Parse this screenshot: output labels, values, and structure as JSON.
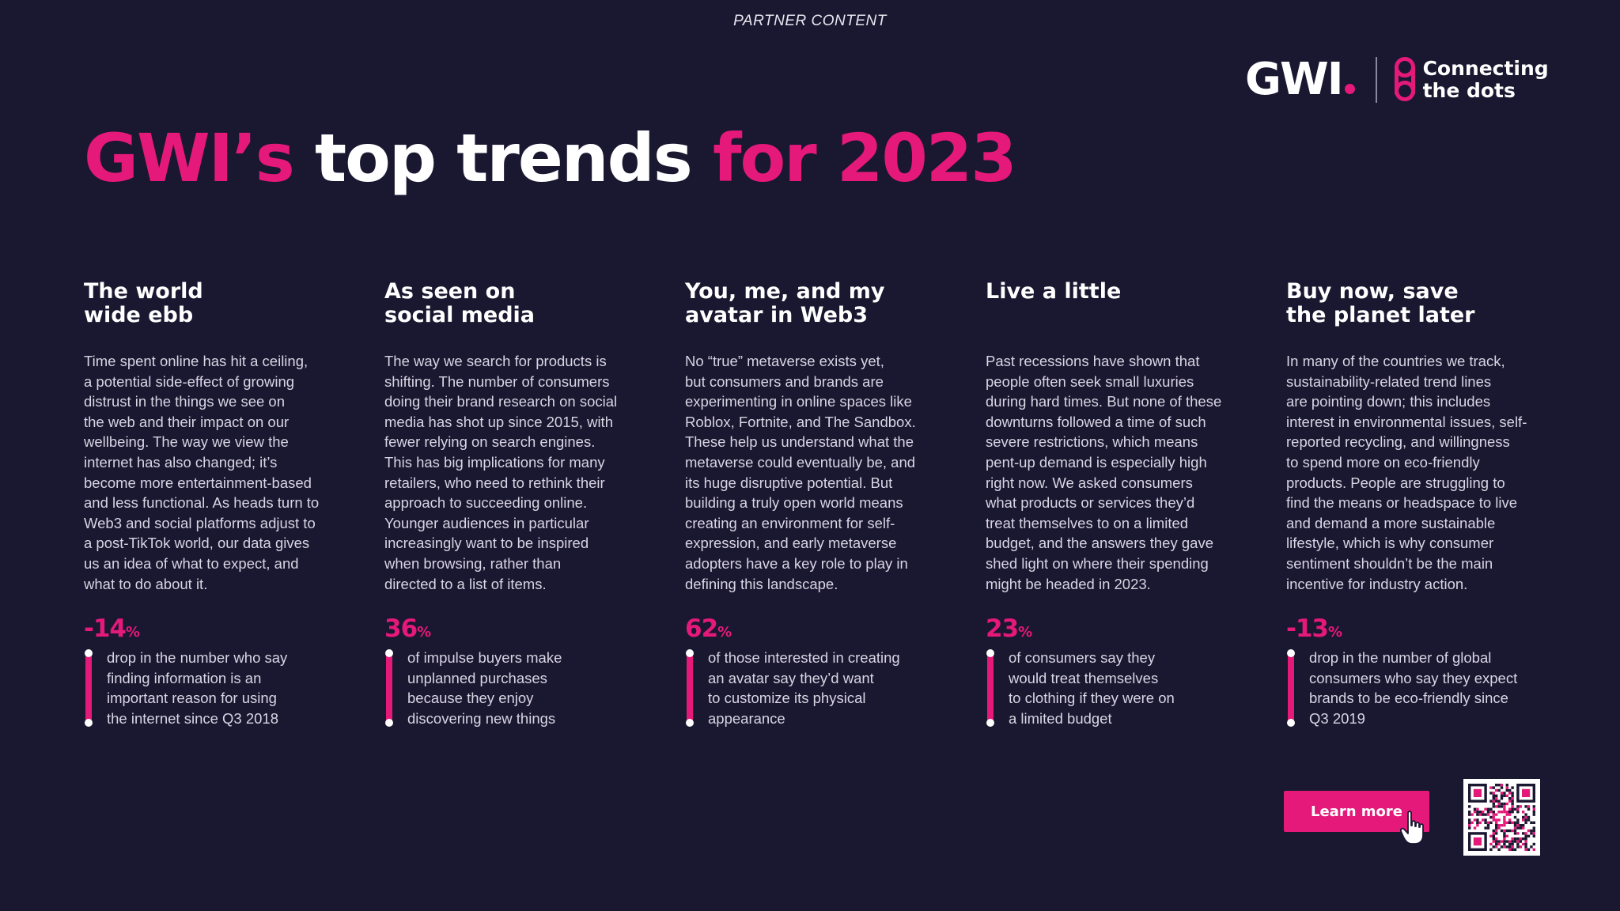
{
  "header": {
    "partner_label": "PARTNER CONTENT"
  },
  "brand": {
    "logo_text": "GWI",
    "tagline_line1": "Connecting",
    "tagline_line2": "the dots",
    "accent_color": "#e5197a",
    "background_color": "#1a1730"
  },
  "headline": {
    "part1": "GWI’s ",
    "part2": "top trends ",
    "part3": "for 2023"
  },
  "trends": [
    {
      "title": "The world\nwide ebb",
      "body": "Time spent online has hit a ceiling,\na potential side-effect of growing\ndistrust in the things we see on\nthe web and their impact on our\nwellbeing. The way we view the\ninternet has also changed; it’s\nbecome more entertainment-based\nand less functional. As heads turn to\nWeb3 and social platforms adjust to\na post-TikTok world, our data gives\nus an idea of what to expect, and\nwhat to do about it.",
      "stat_value": "-14",
      "stat_unit": "%",
      "stat_text": "drop in the number who say\nfinding information is an\nimportant reason for using\nthe internet since Q3 2018"
    },
    {
      "title": "As seen on\nsocial media",
      "body": "The way we search for products is\nshifting. The number of consumers\ndoing their brand research on social\nmedia has shot up since 2015, with\nfewer relying on search engines.\nThis has big implications for many\nretailers, who need to rethink their\napproach to succeeding online.\nYounger audiences in particular\nincreasingly want to be inspired\nwhen browsing, rather than\ndirected to a list of items.",
      "stat_value": "36",
      "stat_unit": "%",
      "stat_text": "of impulse buyers make\nunplanned purchases\nbecause they enjoy\ndiscovering new things"
    },
    {
      "title": "You, me, and my\navatar in Web3",
      "body": "No “true” metaverse exists yet,\nbut consumers and brands are\nexperimenting in online spaces like\nRoblox, Fortnite, and The Sandbox.\nThese help us understand what the\nmetaverse could eventually be, and\nits huge disruptive potential. But\nbuilding a truly open world means\ncreating an environment for self-\nexpression, and early metaverse\nadopters have a key role to play in\ndefining this landscape.",
      "stat_value": "62",
      "stat_unit": "%",
      "stat_text": "of those interested in creating\nan avatar say they’d want\nto customize its physical\nappearance"
    },
    {
      "title": "Live a little",
      "body": "Past recessions have shown that\npeople often seek small luxuries\nduring hard times. But none of these\ndownturns followed a time of such\nsevere restrictions, which means\npent-up demand is especially high\nright now. We asked consumers\nwhat products or services they’d\ntreat themselves to on a limited\nbudget, and the answers they gave\nshed light on where their spending\nmight be headed in 2023.",
      "stat_value": "23",
      "stat_unit": "%",
      "stat_text": "of consumers say they\nwould treat themselves\nto clothing if they were on\na limited budget"
    },
    {
      "title": "Buy now, save\nthe planet later",
      "body": "In many of the countries we track,\nsustainability-related trend lines\nare pointing down; this includes\ninterest in environmental issues, self-\nreported recycling, and willingness\nto spend more on eco-friendly\nproducts. People are struggling to\nfind the means or headspace to live\nand demand a more sustainable\nlifestyle, which is why consumer\nsentiment shouldn’t be the main\nincentive for industry action.",
      "stat_value": "-13",
      "stat_unit": "%",
      "stat_text": "drop in the number of global\nconsumers who say they expect\nbrands to be eco-friendly since\nQ3 2019"
    }
  ],
  "cta": {
    "learn_more_label": "Learn more"
  },
  "icons": {
    "cursor": "hand-pointer-icon",
    "qr": "qr-code-icon",
    "connect": "connecting-dots-icon"
  }
}
